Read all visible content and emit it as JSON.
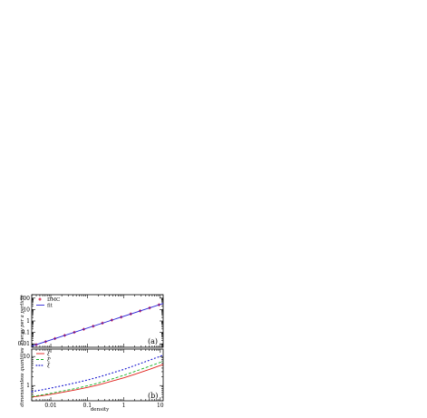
{
  "chart_data": [
    {
      "type": "scatter",
      "panel_label": "(a)",
      "xscale": "log",
      "yscale": "log",
      "xlim": [
        0.003,
        12
      ],
      "ylim": [
        0.005,
        200
      ],
      "ylabel": "energy per a particle",
      "xticks": [],
      "yticks": [
        0.01,
        0.1,
        1,
        10,
        100
      ],
      "ytick_labels": [
        "0.01",
        "0.1",
        "1",
        "10",
        "100"
      ],
      "legend": {
        "placement": "top-left",
        "entries": [
          "DMC",
          "fit"
        ]
      },
      "grid": false,
      "series": [
        {
          "name": "DMC",
          "kind": "markers",
          "color": "#d0103a",
          "marker": "star",
          "x": [
            0.004,
            0.0072,
            0.013,
            0.024,
            0.044,
            0.08,
            0.145,
            0.26,
            0.47,
            0.85,
            1.55,
            2.8,
            5.1,
            9.2
          ],
          "y": [
            0.0085,
            0.0155,
            0.029,
            0.055,
            0.102,
            0.19,
            0.35,
            0.65,
            1.2,
            2.2,
            4.1,
            7.6,
            14,
            26
          ]
        },
        {
          "name": "fit",
          "kind": "line",
          "color": "#2a22d6",
          "x": [
            0.003,
            12
          ],
          "y": [
            0.0063,
            34
          ]
        }
      ]
    },
    {
      "type": "line",
      "panel_label": "(b)",
      "xscale": "log",
      "yscale": "log",
      "xlim": [
        0.003,
        12
      ],
      "ylim": [
        0.3,
        18
      ],
      "xlabel": "density",
      "ylabel": "dimensionless quantities",
      "xticks": [
        0.01,
        0.1,
        1,
        10
      ],
      "xtick_labels": [
        "0.01",
        "0.1",
        "1",
        "10"
      ],
      "yticks": [
        1,
        10
      ],
      "ytick_labels": [
        "1",
        "10"
      ],
      "legend": {
        "placement": "top-left",
        "entries": [
          "ξ",
          "ξ'",
          "ξ"
        ]
      },
      "grid": false,
      "series": [
        {
          "name": "ξ",
          "color": "#e0201a",
          "dash": "solid",
          "x": [
            0.003,
            0.006,
            0.01,
            0.02,
            0.05,
            0.1,
            0.2,
            0.5,
            1,
            2,
            5,
            10,
            12
          ],
          "y": [
            0.4,
            0.45,
            0.5,
            0.58,
            0.72,
            0.86,
            1.05,
            1.45,
            1.85,
            2.45,
            3.6,
            4.9,
            5.3
          ]
        },
        {
          "name": "ξ'",
          "color": "#10b020",
          "dash": "dash",
          "x": [
            0.003,
            0.006,
            0.01,
            0.02,
            0.05,
            0.1,
            0.2,
            0.5,
            1,
            2,
            5,
            10,
            12
          ],
          "y": [
            0.42,
            0.48,
            0.54,
            0.64,
            0.8,
            0.98,
            1.22,
            1.72,
            2.25,
            3.05,
            4.6,
            6.3,
            6.9
          ]
        },
        {
          "name": "ξ",
          "color": "#1a1ad0",
          "dash": "dot",
          "x": [
            0.003,
            0.006,
            0.01,
            0.02,
            0.05,
            0.1,
            0.2,
            0.5,
            1,
            2,
            5,
            10,
            12
          ],
          "y": [
            0.62,
            0.72,
            0.82,
            0.98,
            1.26,
            1.55,
            1.95,
            2.75,
            3.6,
            4.9,
            7.4,
            10.2,
            11.2
          ]
        }
      ]
    }
  ]
}
